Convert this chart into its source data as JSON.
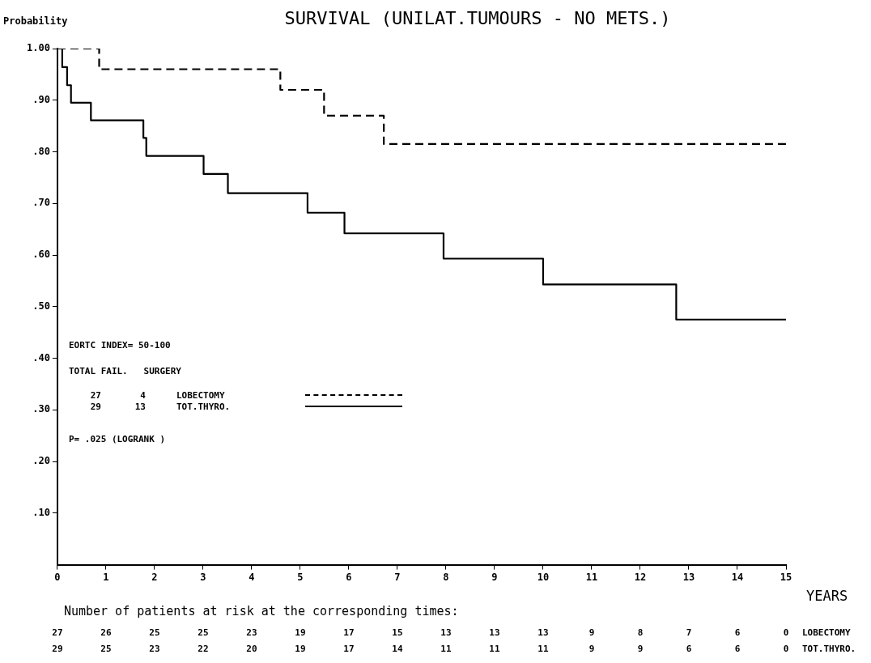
{
  "chart_data": {
    "type": "step",
    "title": "SURVIVAL (UNILAT.TUMOURS - NO METS.)",
    "ylabel": "Probability",
    "xlabel": "YEARS",
    "series": [
      {
        "name": "LOBECTOMY",
        "color": "#000000",
        "line_style": "dashed",
        "x": [
          0,
          0.86,
          4.59,
          5.49,
          6.72,
          15
        ],
        "values": [
          1,
          0.96,
          0.92,
          0.87,
          0.815,
          0.815
        ]
      },
      {
        "name": "TOT.THYRO.",
        "color": "#000000",
        "line_style": "solid",
        "x": [
          0,
          0.1,
          0.2,
          0.28,
          0.69,
          1.77,
          1.83,
          3.01,
          3.51,
          5.15,
          5.91,
          7.95,
          10.0,
          12.74,
          15
        ],
        "values": [
          1,
          0.964,
          0.929,
          0.895,
          0.861,
          0.827,
          0.792,
          0.757,
          0.72,
          0.682,
          0.642,
          0.593,
          0.543,
          0.475,
          0.475
        ]
      }
    ],
    "xlim": [
      0,
      15
    ],
    "xticks": [
      0,
      1,
      2,
      3,
      4,
      5,
      6,
      7,
      8,
      9,
      10,
      11,
      12,
      13,
      14,
      15
    ],
    "ylim": [
      0,
      1
    ],
    "yticks": [
      {
        "value": 1,
        "label": "1.00"
      },
      {
        "value": 0.9,
        "label": ".90"
      },
      {
        "value": 0.8,
        "label": ".80"
      },
      {
        "value": 0.7,
        "label": ".70"
      },
      {
        "value": 0.6,
        "label": ".60"
      },
      {
        "value": 0.5,
        "label": ".50"
      },
      {
        "value": 0.4,
        "label": ".40"
      },
      {
        "value": 0.3,
        "label": ".30"
      },
      {
        "value": 0.2,
        "label": ".20"
      },
      {
        "value": 0.1,
        "label": ".10"
      }
    ],
    "grid": false,
    "legend": "bottom left",
    "marker": "none",
    "annotations": [
      "EORTC INDEX= 50-100",
      "TOTAL FAIL.   SURGERY",
      "27 4",
      "29 13",
      "P= .025 (LOGRANK )",
      "Number of patients at risk at the corresponding times:",
      "27 26 25 25 23 19 17 15 13 13 13 9 8 7 6 0",
      "29 25 23 22 20 19 17 14 11 11 11 9 9 6 6 0"
    ]
  }
}
